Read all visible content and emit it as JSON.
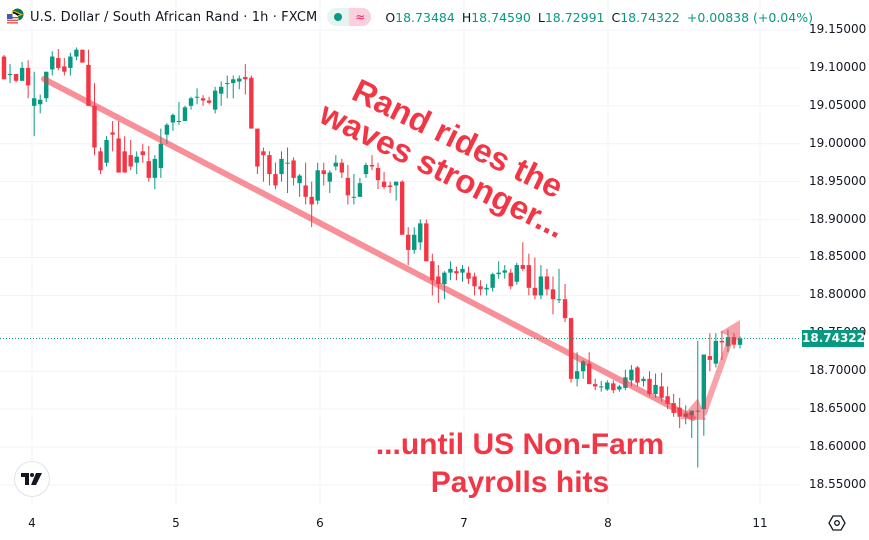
{
  "header": {
    "symbol_title": "U.S. Dollar / South African Rand · 1h · FXCM",
    "status_dot_color": "#089981",
    "ohlc": {
      "open_label": "O",
      "open": "18.73484",
      "high_label": "H",
      "high": "18.74590",
      "low_label": "L",
      "low": "18.72991",
      "close_label": "C",
      "close": "18.74322",
      "change": "+0.00838 (+0.04%)"
    }
  },
  "price_axis": {
    "ticks": [
      "19.15000",
      "19.10000",
      "19.05000",
      "19.00000",
      "18.95000",
      "18.90000",
      "18.85000",
      "18.80000",
      "18.75000",
      "18.70000",
      "18.65000",
      "18.60000",
      "18.55000"
    ],
    "last_price": "18.74322",
    "last_price_color": "#089981"
  },
  "time_axis": {
    "ticks": [
      "4",
      "5",
      "6",
      "7",
      "8",
      "11"
    ]
  },
  "annotations": {
    "top_text_line1": "Rand rides the",
    "top_text_line2": "waves stronger...",
    "bottom_text_line1": "...until US Non-Farm",
    "bottom_text_line2": "Payrolls hits",
    "color": "#f23645",
    "trend_arrow_color": "#f7a0a0"
  },
  "colors": {
    "up": "#089981",
    "down": "#f23645",
    "grid": "#f0f3fa"
  },
  "chart_data": {
    "type": "candlestick",
    "title": "U.S. Dollar / South African Rand · 1h · FXCM",
    "xlabel": "",
    "ylabel": "USD/ZAR",
    "ylim": [
      18.53,
      19.17
    ],
    "x_ticks": [
      "4",
      "5",
      "6",
      "7",
      "8",
      "11"
    ],
    "y_ticks": [
      19.15,
      19.1,
      19.05,
      19.0,
      18.95,
      18.9,
      18.85,
      18.8,
      18.75,
      18.7,
      18.65,
      18.6,
      18.55
    ],
    "last": 18.74322,
    "candles": [
      {
        "o": 19.115,
        "h": 19.117,
        "l": 19.085,
        "c": 19.085
      },
      {
        "o": 19.092,
        "h": 19.105,
        "l": 19.08,
        "c": 19.092
      },
      {
        "o": 19.092,
        "h": 19.092,
        "l": 19.081,
        "c": 19.083
      },
      {
        "o": 19.083,
        "h": 19.108,
        "l": 19.083,
        "c": 19.1
      },
      {
        "o": 19.1,
        "h": 19.11,
        "l": 19.06,
        "c": 19.077
      },
      {
        "o": 19.05,
        "h": 19.095,
        "l": 19.01,
        "c": 19.06
      },
      {
        "o": 19.052,
        "h": 19.065,
        "l": 19.04,
        "c": 19.058
      },
      {
        "o": 19.06,
        "h": 19.095,
        "l": 19.055,
        "c": 19.095
      },
      {
        "o": 19.098,
        "h": 19.122,
        "l": 19.09,
        "c": 19.115
      },
      {
        "o": 19.113,
        "h": 19.125,
        "l": 19.097,
        "c": 19.1
      },
      {
        "o": 19.102,
        "h": 19.113,
        "l": 19.09,
        "c": 19.095
      },
      {
        "o": 19.1,
        "h": 19.12,
        "l": 19.09,
        "c": 19.115
      },
      {
        "o": 19.115,
        "h": 19.127,
        "l": 19.11,
        "c": 19.124
      },
      {
        "o": 19.124,
        "h": 19.124,
        "l": 19.107,
        "c": 19.107
      },
      {
        "o": 19.104,
        "h": 19.124,
        "l": 19.05,
        "c": 19.05
      },
      {
        "o": 19.05,
        "h": 19.08,
        "l": 18.985,
        "c": 18.995
      },
      {
        "o": 18.99,
        "h": 18.995,
        "l": 18.96,
        "c": 18.965
      },
      {
        "o": 18.975,
        "h": 19.01,
        "l": 18.97,
        "c": 19.005
      },
      {
        "o": 19.015,
        "h": 19.03,
        "l": 18.99,
        "c": 19.012
      },
      {
        "o": 19.007,
        "h": 19.03,
        "l": 18.97,
        "c": 18.962
      },
      {
        "o": 18.99,
        "h": 19.01,
        "l": 18.965,
        "c": 18.962
      },
      {
        "o": 18.985,
        "h": 19.005,
        "l": 18.965,
        "c": 18.97
      },
      {
        "o": 18.975,
        "h": 18.99,
        "l": 18.96,
        "c": 18.983
      },
      {
        "o": 18.99,
        "h": 19.0,
        "l": 18.975,
        "c": 18.985
      },
      {
        "o": 18.977,
        "h": 18.997,
        "l": 18.95,
        "c": 18.955
      },
      {
        "o": 18.955,
        "h": 18.985,
        "l": 18.94,
        "c": 18.98
      },
      {
        "o": 18.968,
        "h": 19.02,
        "l": 18.955,
        "c": 19.0
      },
      {
        "o": 19.012,
        "h": 19.027,
        "l": 19.0,
        "c": 19.025
      },
      {
        "o": 19.028,
        "h": 19.04,
        "l": 19.017,
        "c": 19.038
      },
      {
        "o": 19.03,
        "h": 19.055,
        "l": 19.025,
        "c": 19.03
      },
      {
        "o": 19.03,
        "h": 19.05,
        "l": 19.032,
        "c": 19.048
      },
      {
        "o": 19.05,
        "h": 19.062,
        "l": 19.045,
        "c": 19.06
      },
      {
        "o": 19.062,
        "h": 19.073,
        "l": 19.052,
        "c": 19.062
      },
      {
        "o": 19.06,
        "h": 19.064,
        "l": 19.05,
        "c": 19.057
      },
      {
        "o": 19.057,
        "h": 19.062,
        "l": 19.052,
        "c": 19.054
      },
      {
        "o": 19.045,
        "h": 19.075,
        "l": 19.04,
        "c": 19.07
      },
      {
        "o": 19.066,
        "h": 19.082,
        "l": 19.05,
        "c": 19.075
      },
      {
        "o": 19.08,
        "h": 19.09,
        "l": 19.06,
        "c": 19.08
      },
      {
        "o": 19.08,
        "h": 19.09,
        "l": 19.06,
        "c": 19.085
      },
      {
        "o": 19.082,
        "h": 19.09,
        "l": 19.072,
        "c": 19.086
      },
      {
        "o": 19.088,
        "h": 19.105,
        "l": 19.065,
        "c": 19.085
      },
      {
        "o": 19.087,
        "h": 19.09,
        "l": 19.02,
        "c": 19.02
      },
      {
        "o": 19.02,
        "h": 19.0,
        "l": 18.96,
        "c": 18.97
      },
      {
        "o": 18.99,
        "h": 18.995,
        "l": 18.95,
        "c": 18.985
      },
      {
        "o": 18.985,
        "h": 18.99,
        "l": 18.945,
        "c": 18.96
      },
      {
        "o": 18.96,
        "h": 18.975,
        "l": 18.94,
        "c": 18.945
      },
      {
        "o": 18.96,
        "h": 18.99,
        "l": 18.95,
        "c": 18.98
      },
      {
        "o": 18.975,
        "h": 18.995,
        "l": 18.935,
        "c": 18.975
      },
      {
        "o": 18.978,
        "h": 18.982,
        "l": 18.945,
        "c": 18.955
      },
      {
        "o": 18.948,
        "h": 18.96,
        "l": 18.93,
        "c": 18.958
      },
      {
        "o": 18.945,
        "h": 18.975,
        "l": 18.92,
        "c": 18.93
      },
      {
        "o": 18.93,
        "h": 18.95,
        "l": 18.89,
        "c": 18.92
      },
      {
        "o": 18.925,
        "h": 18.975,
        "l": 18.92,
        "c": 18.965
      },
      {
        "o": 18.965,
        "h": 18.975,
        "l": 18.945,
        "c": 18.96
      },
      {
        "o": 18.95,
        "h": 18.965,
        "l": 18.935,
        "c": 18.962
      },
      {
        "o": 18.97,
        "h": 18.985,
        "l": 18.965,
        "c": 18.975
      },
      {
        "o": 18.975,
        "h": 18.98,
        "l": 18.955,
        "c": 18.962
      },
      {
        "o": 18.955,
        "h": 18.972,
        "l": 18.92,
        "c": 18.932
      },
      {
        "o": 18.93,
        "h": 18.96,
        "l": 18.92,
        "c": 18.93
      },
      {
        "o": 18.93,
        "h": 18.955,
        "l": 18.93,
        "c": 18.948
      },
      {
        "o": 18.96,
        "h": 18.975,
        "l": 18.955,
        "c": 18.972
      },
      {
        "o": 18.972,
        "h": 18.985,
        "l": 18.965,
        "c": 18.97
      },
      {
        "o": 18.968,
        "h": 18.975,
        "l": 18.94,
        "c": 18.952
      },
      {
        "o": 18.95,
        "h": 18.963,
        "l": 18.94,
        "c": 18.943
      },
      {
        "o": 18.945,
        "h": 18.95,
        "l": 18.935,
        "c": 18.943
      },
      {
        "o": 18.945,
        "h": 18.95,
        "l": 18.925,
        "c": 18.95
      },
      {
        "o": 18.95,
        "h": 18.952,
        "l": 18.88,
        "c": 18.88
      },
      {
        "o": 18.88,
        "h": 18.89,
        "l": 18.84,
        "c": 18.86
      },
      {
        "o": 18.86,
        "h": 18.89,
        "l": 18.855,
        "c": 18.88
      },
      {
        "o": 18.87,
        "h": 18.9,
        "l": 18.86,
        "c": 18.895
      },
      {
        "o": 18.895,
        "h": 18.9,
        "l": 18.85,
        "c": 18.845
      },
      {
        "o": 18.845,
        "h": 18.855,
        "l": 18.8,
        "c": 18.82
      },
      {
        "o": 18.825,
        "h": 18.84,
        "l": 18.79,
        "c": 18.815
      },
      {
        "o": 18.815,
        "h": 18.832,
        "l": 18.795,
        "c": 18.83
      },
      {
        "o": 18.83,
        "h": 18.845,
        "l": 18.82,
        "c": 18.835
      },
      {
        "o": 18.832,
        "h": 18.838,
        "l": 18.82,
        "c": 18.829
      },
      {
        "o": 18.83,
        "h": 18.84,
        "l": 18.818,
        "c": 18.835
      },
      {
        "o": 18.83,
        "h": 18.838,
        "l": 18.815,
        "c": 18.822
      },
      {
        "o": 18.825,
        "h": 18.83,
        "l": 18.8,
        "c": 18.812
      },
      {
        "o": 18.812,
        "h": 18.82,
        "l": 18.8,
        "c": 18.808
      },
      {
        "o": 18.808,
        "h": 18.815,
        "l": 18.8,
        "c": 18.81
      },
      {
        "o": 18.81,
        "h": 18.83,
        "l": 18.805,
        "c": 18.828
      },
      {
        "o": 18.828,
        "h": 18.845,
        "l": 18.822,
        "c": 18.83
      },
      {
        "o": 18.83,
        "h": 18.84,
        "l": 18.822,
        "c": 18.833
      },
      {
        "o": 18.83,
        "h": 18.835,
        "l": 18.808,
        "c": 18.812
      },
      {
        "o": 18.818,
        "h": 18.843,
        "l": 18.814,
        "c": 18.84
      },
      {
        "o": 18.84,
        "h": 18.87,
        "l": 18.832,
        "c": 18.835
      },
      {
        "o": 18.84,
        "h": 18.855,
        "l": 18.8,
        "c": 18.81
      },
      {
        "o": 18.81,
        "h": 18.85,
        "l": 18.795,
        "c": 18.8
      },
      {
        "o": 18.8,
        "h": 18.84,
        "l": 18.795,
        "c": 18.825
      },
      {
        "o": 18.825,
        "h": 18.835,
        "l": 18.8,
        "c": 18.808
      },
      {
        "o": 18.808,
        "h": 18.825,
        "l": 18.775,
        "c": 18.795
      },
      {
        "o": 18.795,
        "h": 18.835,
        "l": 18.79,
        "c": 18.795
      },
      {
        "o": 18.795,
        "h": 18.815,
        "l": 18.765,
        "c": 18.77
      },
      {
        "o": 18.77,
        "h": 18.77,
        "l": 18.685,
        "c": 18.69
      },
      {
        "o": 18.69,
        "h": 18.725,
        "l": 18.68,
        "c": 18.7
      },
      {
        "o": 18.7,
        "h": 18.715,
        "l": 18.69,
        "c": 18.713
      },
      {
        "o": 18.71,
        "h": 18.725,
        "l": 18.688,
        "c": 18.683
      },
      {
        "o": 18.683,
        "h": 18.69,
        "l": 18.675,
        "c": 18.68
      },
      {
        "o": 18.68,
        "h": 18.687,
        "l": 18.673,
        "c": 18.68
      },
      {
        "o": 18.676,
        "h": 18.688,
        "l": 18.674,
        "c": 18.685
      },
      {
        "o": 18.684,
        "h": 18.688,
        "l": 18.671,
        "c": 18.675
      },
      {
        "o": 18.676,
        "h": 18.682,
        "l": 18.673,
        "c": 18.68
      },
      {
        "o": 18.678,
        "h": 18.702,
        "l": 18.675,
        "c": 18.692
      },
      {
        "o": 18.688,
        "h": 18.708,
        "l": 18.68,
        "c": 18.702
      },
      {
        "o": 18.705,
        "h": 18.707,
        "l": 18.68,
        "c": 18.685
      },
      {
        "o": 18.687,
        "h": 18.693,
        "l": 18.68,
        "c": 18.69
      },
      {
        "o": 18.69,
        "h": 18.7,
        "l": 18.667,
        "c": 18.67
      },
      {
        "o": 18.67,
        "h": 18.697,
        "l": 18.665,
        "c": 18.682
      },
      {
        "o": 18.68,
        "h": 18.698,
        "l": 18.66,
        "c": 18.665
      },
      {
        "o": 18.667,
        "h": 18.68,
        "l": 18.65,
        "c": 18.657
      },
      {
        "o": 18.658,
        "h": 18.67,
        "l": 18.64,
        "c": 18.645
      },
      {
        "o": 18.652,
        "h": 18.665,
        "l": 18.625,
        "c": 18.64
      },
      {
        "o": 18.64,
        "h": 18.655,
        "l": 18.63,
        "c": 18.644
      },
      {
        "o": 18.642,
        "h": 18.648,
        "l": 18.612,
        "c": 18.648
      },
      {
        "o": 18.648,
        "h": 18.74,
        "l": 18.573,
        "c": 18.648
      },
      {
        "o": 18.65,
        "h": 18.71,
        "l": 18.615,
        "c": 18.722
      },
      {
        "o": 18.72,
        "h": 18.75,
        "l": 18.7,
        "c": 18.715
      },
      {
        "o": 18.71,
        "h": 18.75,
        "l": 18.705,
        "c": 18.74
      },
      {
        "o": 18.74,
        "h": 18.753,
        "l": 18.715,
        "c": 18.738
      },
      {
        "o": 18.733,
        "h": 18.755,
        "l": 18.725,
        "c": 18.745
      },
      {
        "o": 18.745,
        "h": 18.75,
        "l": 18.73,
        "c": 18.735
      },
      {
        "o": 18.7348,
        "h": 18.7459,
        "l": 18.7299,
        "c": 18.7432
      }
    ]
  }
}
